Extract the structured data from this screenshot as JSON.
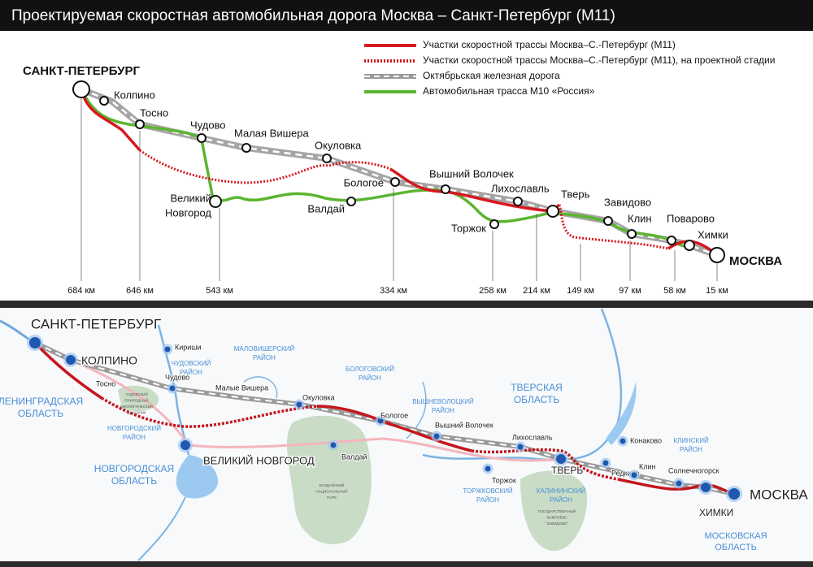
{
  "header": {
    "title": "Проектируемая скоростная автомобильная дорога Москва – Санкт-Петербург (М11)"
  },
  "legend": [
    "Участки скоростной трассы Москва–С.-Петербург (М11)",
    "Участки скоростной трассы Москва–С.-Петербург (М11), на проектной стадии",
    "Октябрьская железная дорога",
    "Автомобильная трасса М10 «Россия»"
  ],
  "schematic": {
    "cities": [
      [
        "САНКТ-ПЕТЕРБУРГ"
      ],
      [
        "Колпино"
      ],
      [
        "Тосно"
      ],
      [
        "Чудово"
      ],
      [
        "Малая Вишера"
      ],
      [
        "Окуловка"
      ],
      [
        "Великий",
        "Новгород"
      ],
      [
        "Валдай"
      ],
      [
        "Бологое"
      ],
      [
        "Вышний Волочек"
      ],
      [
        "Лихославль"
      ],
      [
        "Тверь"
      ],
      [
        "Торжок"
      ],
      [
        "Завидово"
      ],
      [
        "Клин"
      ],
      [
        "Поварово"
      ],
      [
        "Химки"
      ],
      [
        "МОСКВА"
      ]
    ],
    "distances": [
      "684 км",
      "646 км",
      "543 км",
      "334 км",
      "258 км",
      "214 км",
      "149 км",
      "97 км",
      "58 км",
      "15 км"
    ]
  },
  "map": {
    "cities": [
      [
        "САНКТ-ПЕТЕРБУРГ"
      ],
      [
        "КОЛПИНО"
      ],
      [
        "Кириши"
      ],
      [
        "Тосно"
      ],
      [
        "Чудово"
      ],
      [
        "Малые Вишера"
      ],
      [
        "Окуловка"
      ],
      [
        "Бологое"
      ],
      [
        "Вышний Волочек"
      ],
      [
        "Лихославль"
      ],
      [
        "Конаково"
      ],
      [
        "ВЕЛИКИЙ НОВГОРОД"
      ],
      [
        "Валдай"
      ],
      [
        "ТВЕРЬ"
      ],
      [
        "Редкино"
      ],
      [
        "Клин"
      ],
      [
        "Солнечногорск"
      ],
      [
        "Торжок"
      ],
      [
        "МОСКВА"
      ],
      [
        "ХИМКИ"
      ]
    ],
    "regions": [
      [
        "ЛЕНИНГРАДСКАЯ",
        "ОБЛАСТЬ"
      ],
      [
        "ЧУДОВСКИЙ",
        "РАЙОН"
      ],
      [
        "МАЛОВИШЕРСКИЙ",
        "РАЙОН"
      ],
      [
        "БОЛОГОВСКИЙ",
        "РАЙОН"
      ],
      [
        "ТВЕРСКАЯ",
        "ОБЛАСТЬ"
      ],
      [
        "ЧУДОВСКИЙ",
        "ПРИРОДНЫЙ",
        "БИОЛОГИЧЕСКИЙ",
        "ЗАКАЗНИК"
      ],
      [
        "НОВГОРОДСКИЙ",
        "РАЙОН"
      ],
      [
        "ВЫШНЕВОЛОЦКИЙ",
        "РАЙОН"
      ],
      [
        "КЛИНСКИЙ",
        "РАЙОН"
      ],
      [
        "НОВГОРОДСКАЯ",
        "ОБЛАСТЬ"
      ],
      [
        "ВАЛДАЙСКИЙ",
        "НАЦИОНАЛЬНЫЙ",
        "ПАРК"
      ],
      [
        "ТОРЖКОВСКИЙ",
        "РАЙОН"
      ],
      [
        "КАЛИНИНСКИЙ",
        "РАЙОН"
      ],
      [
        "ГОСУДАРСТВЕННЫЙ",
        "КОМПЛЕКС",
        "\"ЗАВИДОВО\""
      ],
      [
        "МОСКОВСКАЯ",
        "ОБЛАСТЬ"
      ]
    ]
  }
}
